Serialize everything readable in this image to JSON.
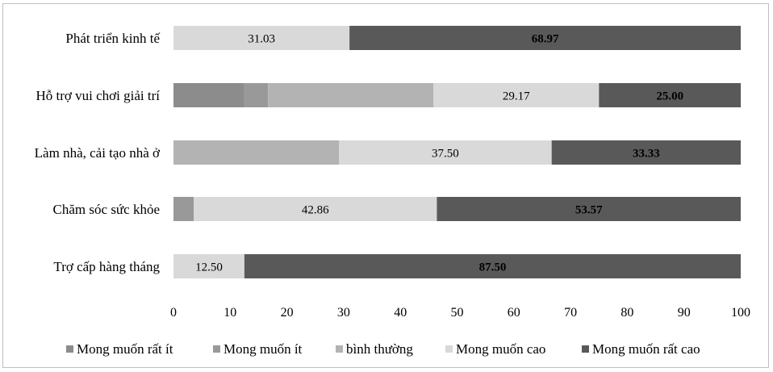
{
  "chart_data": {
    "type": "bar",
    "orientation": "horizontal",
    "stacked": true,
    "categories": [
      "Phát triển kinh tế",
      "Hỗ trợ vui chơi giải trí",
      "Làm nhà, cải tạo nhà ở",
      "Chăm sóc sức khỏe",
      "Trợ cấp hàng tháng"
    ],
    "series": [
      {
        "name": "Mong muốn rất ít",
        "color": "#8c8c8c",
        "values": [
          0,
          12.5,
          0,
          0,
          0
        ],
        "labels": [
          "",
          "",
          "",
          "",
          ""
        ]
      },
      {
        "name": "Mong muốn ít",
        "color": "#999999",
        "values": [
          0,
          4.17,
          0,
          3.57,
          0
        ],
        "labels": [
          "",
          "",
          "",
          "",
          ""
        ]
      },
      {
        "name": "bình thường",
        "color": "#b3b3b3",
        "values": [
          0,
          29.17,
          29.17,
          0,
          0
        ],
        "labels": [
          "",
          "",
          "",
          "",
          ""
        ]
      },
      {
        "name": "Mong muốn cao",
        "color": "#d9d9d9",
        "values": [
          31.03,
          29.17,
          37.5,
          42.86,
          12.5
        ],
        "labels": [
          "31.03",
          "29.17",
          "37.50",
          "42.86",
          "12.50"
        ]
      },
      {
        "name": "Mong muốn rất cao",
        "color": "#595959",
        "values": [
          68.97,
          25.0,
          33.33,
          53.57,
          87.5
        ],
        "labels": [
          "68.97",
          "25.00",
          "33.33",
          "53.57",
          "87.50"
        ]
      }
    ],
    "x_ticks": [
      "0",
      "10",
      "20",
      "30",
      "40",
      "50",
      "60",
      "70",
      "80",
      "90",
      "100"
    ],
    "xlim": [
      0,
      100
    ],
    "grid": false,
    "legend": "bottom",
    "title": "",
    "xlabel": "",
    "ylabel": ""
  }
}
